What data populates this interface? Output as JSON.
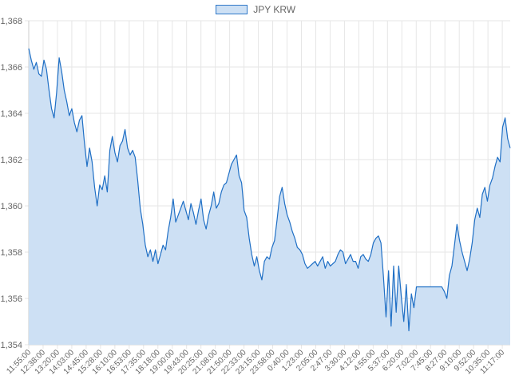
{
  "chart_data": {
    "type": "area",
    "series": [
      {
        "name": "JPY KRW",
        "line_color": "#1f6fc5",
        "fill_color": "#cde0f4",
        "points": [
          [
            "11:55:00",
            1366.8
          ],
          [
            "12:02:00",
            1366.3
          ],
          [
            "12:10:00",
            1365.9
          ],
          [
            "12:18:00",
            1366.2
          ],
          [
            "12:26:00",
            1365.7
          ],
          [
            "12:34:00",
            1365.6
          ],
          [
            "12:42:00",
            1366.3
          ],
          [
            "12:50:00",
            1365.9
          ],
          [
            "12:58:00",
            1365.0
          ],
          [
            "13:03:00",
            1364.2
          ],
          [
            "13:07:00",
            1363.8
          ],
          [
            "13:12:00",
            1364.9
          ],
          [
            "13:20:00",
            1366.4
          ],
          [
            "13:28:00",
            1365.8
          ],
          [
            "13:36:00",
            1365.0
          ],
          [
            "13:44:00",
            1364.5
          ],
          [
            "13:52:00",
            1363.9
          ],
          [
            "14:03:00",
            1364.2
          ],
          [
            "14:12:00",
            1363.6
          ],
          [
            "14:20:00",
            1363.2
          ],
          [
            "14:28:00",
            1363.7
          ],
          [
            "14:36:00",
            1363.9
          ],
          [
            "14:45:00",
            1362.7
          ],
          [
            "14:52:00",
            1361.7
          ],
          [
            "15:00:00",
            1362.5
          ],
          [
            "15:08:00",
            1361.9
          ],
          [
            "15:16:00",
            1360.8
          ],
          [
            "15:22:00",
            1360.0
          ],
          [
            "15:28:00",
            1360.9
          ],
          [
            "15:36:00",
            1360.7
          ],
          [
            "15:44:00",
            1361.3
          ],
          [
            "15:52:00",
            1360.6
          ],
          [
            "16:00:00",
            1362.4
          ],
          [
            "16:05:00",
            1363.0
          ],
          [
            "16:10:00",
            1362.3
          ],
          [
            "16:18:00",
            1361.9
          ],
          [
            "16:26:00",
            1362.6
          ],
          [
            "16:34:00",
            1362.8
          ],
          [
            "16:42:00",
            1363.3
          ],
          [
            "16:53:00",
            1362.5
          ],
          [
            "17:00:00",
            1362.2
          ],
          [
            "17:08:00",
            1362.4
          ],
          [
            "17:16:00",
            1362.1
          ],
          [
            "17:24:00",
            1361.1
          ],
          [
            "17:30:00",
            1359.9
          ],
          [
            "17:35:00",
            1359.2
          ],
          [
            "17:42:00",
            1358.3
          ],
          [
            "17:50:00",
            1357.8
          ],
          [
            "17:58:00",
            1358.1
          ],
          [
            "18:06:00",
            1357.6
          ],
          [
            "18:12:00",
            1358.1
          ],
          [
            "18:18:00",
            1357.5
          ],
          [
            "18:26:00",
            1357.9
          ],
          [
            "18:34:00",
            1358.3
          ],
          [
            "18:42:00",
            1358.1
          ],
          [
            "18:50:00",
            1358.9
          ],
          [
            "19:00:00",
            1359.5
          ],
          [
            "19:08:00",
            1360.3
          ],
          [
            "19:16:00",
            1359.3
          ],
          [
            "19:24:00",
            1359.6
          ],
          [
            "19:30:00",
            1359.9
          ],
          [
            "19:36:00",
            1360.2
          ],
          [
            "19:43:00",
            1359.8
          ],
          [
            "19:52:00",
            1359.4
          ],
          [
            "20:00:00",
            1360.1
          ],
          [
            "20:08:00",
            1359.7
          ],
          [
            "20:16:00",
            1359.2
          ],
          [
            "20:25:00",
            1359.8
          ],
          [
            "20:34:00",
            1360.3
          ],
          [
            "20:42:00",
            1359.4
          ],
          [
            "20:50:00",
            1359.0
          ],
          [
            "21:00:00",
            1359.6
          ],
          [
            "21:08:00",
            1360.0
          ],
          [
            "21:16:00",
            1360.6
          ],
          [
            "21:24:00",
            1359.9
          ],
          [
            "21:32:00",
            1360.1
          ],
          [
            "21:40:00",
            1360.6
          ],
          [
            "21:50:00",
            1360.9
          ],
          [
            "21:58:00",
            1361.0
          ],
          [
            "22:06:00",
            1361.4
          ],
          [
            "22:12:00",
            1361.8
          ],
          [
            "22:18:00",
            1362.0
          ],
          [
            "22:24:00",
            1362.2
          ],
          [
            "22:33:00",
            1361.3
          ],
          [
            "22:42:00",
            1361.0
          ],
          [
            "22:52:00",
            1359.8
          ],
          [
            "23:00:00",
            1359.5
          ],
          [
            "23:06:00",
            1358.6
          ],
          [
            "23:10:00",
            1357.9
          ],
          [
            "23:15:00",
            1357.4
          ],
          [
            "23:22:00",
            1357.8
          ],
          [
            "23:30:00",
            1357.2
          ],
          [
            "23:38:00",
            1356.8
          ],
          [
            "23:46:00",
            1357.6
          ],
          [
            "23:58:00",
            1357.8
          ],
          [
            "0:06:00",
            1357.7
          ],
          [
            "0:14:00",
            1358.2
          ],
          [
            "0:22:00",
            1358.5
          ],
          [
            "0:30:00",
            1359.4
          ],
          [
            "0:36:00",
            1360.4
          ],
          [
            "0:40:00",
            1360.8
          ],
          [
            "0:48:00",
            1360.1
          ],
          [
            "0:56:00",
            1359.6
          ],
          [
            "1:04:00",
            1359.3
          ],
          [
            "1:12:00",
            1358.9
          ],
          [
            "1:18:00",
            1358.6
          ],
          [
            "1:23:00",
            1358.2
          ],
          [
            "1:32:00",
            1358.1
          ],
          [
            "1:40:00",
            1357.9
          ],
          [
            "1:48:00",
            1357.5
          ],
          [
            "1:56:00",
            1357.3
          ],
          [
            "2:05:00",
            1357.4
          ],
          [
            "2:14:00",
            1357.5
          ],
          [
            "2:22:00",
            1357.6
          ],
          [
            "2:30:00",
            1357.4
          ],
          [
            "2:38:00",
            1357.6
          ],
          [
            "2:47:00",
            1357.8
          ],
          [
            "2:56:00",
            1357.3
          ],
          [
            "3:04:00",
            1357.6
          ],
          [
            "3:12:00",
            1357.4
          ],
          [
            "3:20:00",
            1357.5
          ],
          [
            "3:30:00",
            1357.6
          ],
          [
            "3:38:00",
            1357.9
          ],
          [
            "3:46:00",
            1358.1
          ],
          [
            "3:54:00",
            1358.0
          ],
          [
            "4:02:00",
            1357.5
          ],
          [
            "4:12:00",
            1357.7
          ],
          [
            "4:20:00",
            1357.9
          ],
          [
            "4:28:00",
            1357.6
          ],
          [
            "4:36:00",
            1357.6
          ],
          [
            "4:44:00",
            1357.3
          ],
          [
            "4:55:00",
            1357.8
          ],
          [
            "5:04:00",
            1357.9
          ],
          [
            "5:12:00",
            1357.7
          ],
          [
            "5:20:00",
            1357.6
          ],
          [
            "5:28:00",
            1357.9
          ],
          [
            "5:37:00",
            1358.4
          ],
          [
            "5:46:00",
            1358.6
          ],
          [
            "5:54:00",
            1358.7
          ],
          [
            "6:02:00",
            1358.4
          ],
          [
            "6:10:00",
            1356.9
          ],
          [
            "6:16:00",
            1355.2
          ],
          [
            "6:20:00",
            1357.2
          ],
          [
            "6:24:00",
            1354.8
          ],
          [
            "6:28:00",
            1357.4
          ],
          [
            "6:32:00",
            1355.4
          ],
          [
            "6:36:00",
            1357.4
          ],
          [
            "6:40:00",
            1356.1
          ],
          [
            "6:44:00",
            1355.0
          ],
          [
            "6:48:00",
            1356.6
          ],
          [
            "6:52:00",
            1354.6
          ],
          [
            "6:56:00",
            1356.2
          ],
          [
            "7:02:00",
            1355.6
          ],
          [
            "7:08:00",
            1356.5
          ],
          [
            "7:16:00",
            1356.5
          ],
          [
            "7:24:00",
            1356.5
          ],
          [
            "7:32:00",
            1356.5
          ],
          [
            "7:45:00",
            1356.5
          ],
          [
            "7:55:00",
            1356.5
          ],
          [
            "8:05:00",
            1356.5
          ],
          [
            "8:15:00",
            1356.5
          ],
          [
            "8:27:00",
            1356.5
          ],
          [
            "8:38:00",
            1356.5
          ],
          [
            "8:50:00",
            1356.5
          ],
          [
            "9:00:00",
            1356.3
          ],
          [
            "9:05:00",
            1356.0
          ],
          [
            "9:10:00",
            1357.0
          ],
          [
            "9:16:00",
            1357.4
          ],
          [
            "9:22:00",
            1358.3
          ],
          [
            "9:28:00",
            1359.2
          ],
          [
            "9:34:00",
            1358.5
          ],
          [
            "9:40:00",
            1358.0
          ],
          [
            "9:46:00",
            1357.6
          ],
          [
            "9:52:00",
            1357.2
          ],
          [
            "9:58:00",
            1357.7
          ],
          [
            "10:04:00",
            1358.4
          ],
          [
            "10:10:00",
            1359.4
          ],
          [
            "10:16:00",
            1359.9
          ],
          [
            "10:22:00",
            1359.5
          ],
          [
            "10:28:00",
            1360.5
          ],
          [
            "10:35:00",
            1360.8
          ],
          [
            "10:42:00",
            1360.2
          ],
          [
            "10:50:00",
            1360.9
          ],
          [
            "10:58:00",
            1361.2
          ],
          [
            "11:05:00",
            1361.7
          ],
          [
            "11:12:00",
            1362.1
          ],
          [
            "11:17:00",
            1361.9
          ],
          [
            "11:22:00",
            1363.4
          ],
          [
            "11:27:00",
            1363.8
          ],
          [
            "11:32:00",
            1362.9
          ],
          [
            "11:37:00",
            1362.5
          ]
        ]
      }
    ],
    "x_tick_labels": [
      "11:55:00",
      "12:38:00",
      "13:20:00",
      "14:03:00",
      "14:45:00",
      "15:28:00",
      "16:10:00",
      "16:53:00",
      "17:35:00",
      "18:18:00",
      "19:00:00",
      "19:43:00",
      "20:25:00",
      "21:08:00",
      "21:50:00",
      "22:33:00",
      "23:15:00",
      "23:58:00",
      "0:40:00",
      "1:23:00",
      "2:05:00",
      "2:47:00",
      "3:30:00",
      "4:12:00",
      "4:55:00",
      "5:37:00",
      "6:20:00",
      "7:02:00",
      "7:45:00",
      "8:27:00",
      "9:10:00",
      "9:52:00",
      "10:35:00",
      "11:17:00"
    ],
    "y_ticks": [
      1354,
      1356,
      1358,
      1360,
      1362,
      1364,
      1366,
      1368
    ],
    "y_tick_labels": [
      "1,354",
      "1,356",
      "1,358",
      "1,360",
      "1,362",
      "1,364",
      "1,366",
      "1,368"
    ],
    "ylim": [
      1354,
      1368
    ],
    "grid": true,
    "legend_position": "top-center",
    "gridline_color": "#e6e6e6",
    "axis_color": "#cccccc",
    "text_color": "#666666"
  }
}
